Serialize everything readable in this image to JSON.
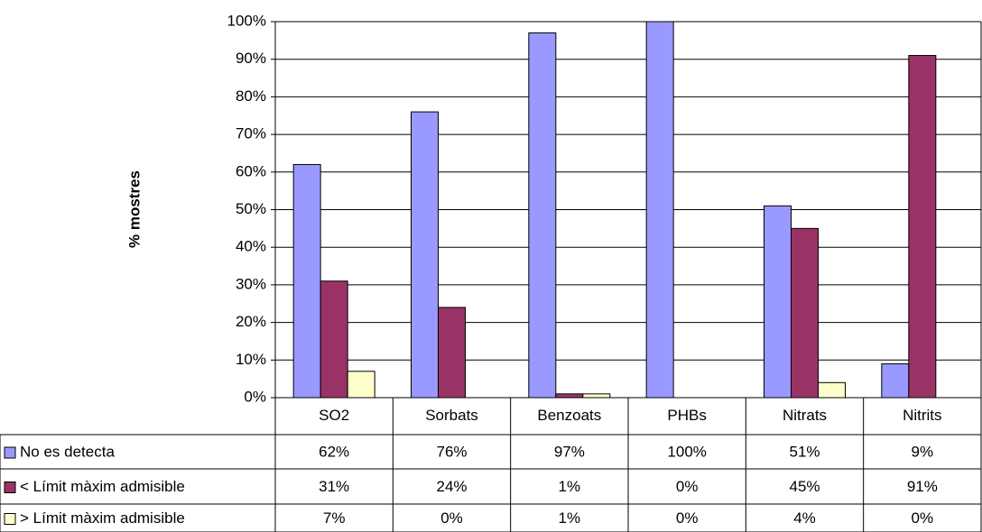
{
  "chart_data": {
    "type": "bar",
    "y_label": "% mostres",
    "categories": [
      "SO2",
      "Sorbats",
      "Benzoats",
      "PHBs",
      "Nitrats",
      "Nitrits"
    ],
    "series": [
      {
        "name": "No es detecta",
        "color": "#9999ff",
        "values": [
          62,
          76,
          97,
          100,
          51,
          9
        ],
        "value_labels": [
          "62%",
          "76%",
          "97%",
          "100%",
          "51%",
          "9%"
        ]
      },
      {
        "name": "< Límit màxim admisible",
        "color": "#993366",
        "values": [
          31,
          24,
          1,
          0,
          45,
          91
        ],
        "value_labels": [
          "31%",
          "24%",
          "1%",
          "0%",
          "45%",
          "91%"
        ]
      },
      {
        "name": "> Límit màxim admisible",
        "color": "#ffffcc",
        "values": [
          7,
          0,
          1,
          0,
          4,
          0
        ],
        "value_labels": [
          "7%",
          "0%",
          "1%",
          "0%",
          "4%",
          "0%"
        ]
      }
    ],
    "ylim": [
      0,
      100
    ],
    "yticks": [
      {
        "value": 0,
        "label": "0%"
      },
      {
        "value": 10,
        "label": "10%"
      },
      {
        "value": 20,
        "label": "20%"
      },
      {
        "value": 30,
        "label": "30%"
      },
      {
        "value": 40,
        "label": "40%"
      },
      {
        "value": 50,
        "label": "50%"
      },
      {
        "value": 60,
        "label": "60%"
      },
      {
        "value": 70,
        "label": "70%"
      },
      {
        "value": 80,
        "label": "80%"
      },
      {
        "value": 90,
        "label": "90%"
      },
      {
        "value": 100,
        "label": "100%"
      }
    ],
    "grid": true
  }
}
